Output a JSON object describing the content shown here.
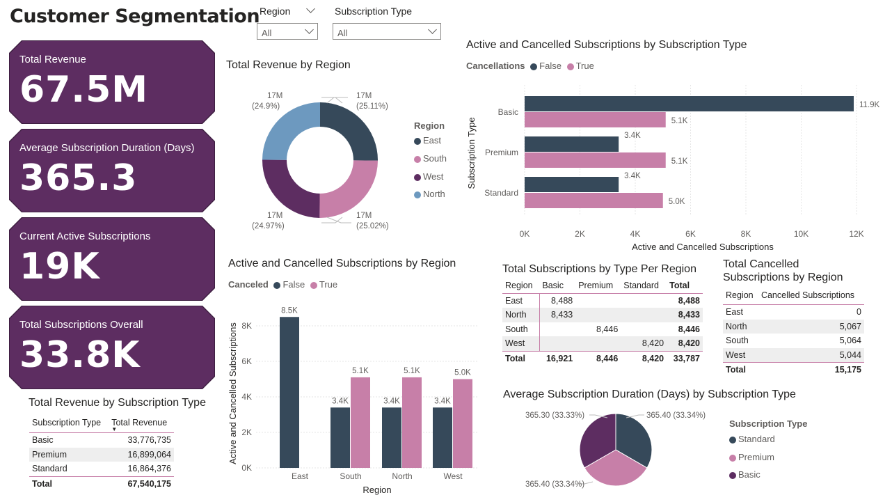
{
  "page_title": "Customer Segmentation",
  "slicers": [
    {
      "label": "Region",
      "value": "All"
    },
    {
      "label": "Subscription Type",
      "value": "All"
    }
  ],
  "kpis": [
    {
      "label": "Total Revenue",
      "value": "67.5M"
    },
    {
      "label": "Average Subscription Duration (Days)",
      "value": "365.3"
    },
    {
      "label": "Current Active Subscriptions",
      "value": "19K"
    },
    {
      "label": "Total Subscriptions Overall",
      "value": "33.8K"
    }
  ],
  "colors": {
    "dark": "#36495a",
    "pink": "#c77fa8",
    "purple": "#5d2d61",
    "blue": "#6d99bf"
  },
  "donut": {
    "title": "Total Revenue by Region",
    "legend_title": "Region",
    "slices": [
      {
        "name": "East",
        "pct": 25.11,
        "label": "17M",
        "pct_label": "(25.11%)",
        "color": "#36495a"
      },
      {
        "name": "South",
        "pct": 25.02,
        "label": "17M",
        "pct_label": "(25.02%)",
        "color": "#c77fa8"
      },
      {
        "name": "West",
        "pct": 24.97,
        "label": "17M",
        "pct_label": "(24.97%)",
        "color": "#5d2d61"
      },
      {
        "name": "North",
        "pct": 24.9,
        "label": "17M",
        "pct_label": "(24.9%)",
        "color": "#6d99bf"
      }
    ]
  },
  "hbar": {
    "title": "Active and Cancelled Subscriptions by Subscription Type",
    "legend_title": "Cancellations",
    "series_names": [
      "False",
      "True"
    ],
    "ylabel": "Subscription Type",
    "xlabel": "Active and Cancelled Subscriptions",
    "ticks": [
      "0K",
      "2K",
      "4K",
      "6K",
      "8K",
      "10K",
      "12K"
    ],
    "categories": [
      "Basic",
      "Premium",
      "Standard"
    ],
    "false_labels": [
      "11.9K",
      "3.4K",
      "3.4K"
    ],
    "true_labels": [
      "5.1K",
      "5.1K",
      "5.0K"
    ]
  },
  "vbar": {
    "title": "Active and Cancelled Subscriptions by Region",
    "legend_title": "Canceled",
    "series_names": [
      "False",
      "True"
    ],
    "ylabel": "Active and Cancelled Subscriptions",
    "xlabel": "Region",
    "ticks": [
      "0K",
      "2K",
      "4K",
      "6K",
      "8K"
    ],
    "categories": [
      "East",
      "South",
      "North",
      "West"
    ],
    "false_labels": [
      "8.5K",
      "3.4K",
      "3.4K",
      "3.4K"
    ],
    "true_labels": [
      "",
      "5.1K",
      "5.1K",
      "5.0K"
    ]
  },
  "chart_data": [
    {
      "type": "bar",
      "title": "Active and Cancelled Subscriptions by Subscription Type",
      "orientation": "horizontal",
      "categories": [
        "Basic",
        "Premium",
        "Standard"
      ],
      "series": [
        {
          "name": "False",
          "values": [
            11900,
            3400,
            3400
          ]
        },
        {
          "name": "True",
          "values": [
            5100,
            5100,
            5000
          ]
        }
      ],
      "xlabel": "Active and Cancelled Subscriptions",
      "ylabel": "Subscription Type",
      "xlim": [
        0,
        12000
      ],
      "legend": "top-left"
    },
    {
      "type": "bar",
      "title": "Active and Cancelled Subscriptions by Region",
      "categories": [
        "East",
        "South",
        "North",
        "West"
      ],
      "series": [
        {
          "name": "False",
          "values": [
            8500,
            3400,
            3400,
            3400
          ]
        },
        {
          "name": "True",
          "values": [
            0,
            5100,
            5100,
            5000
          ]
        }
      ],
      "xlabel": "Region",
      "ylabel": "Active and Cancelled Subscriptions",
      "ylim": [
        0,
        8500
      ],
      "legend": "top-left"
    },
    {
      "type": "pie",
      "title": "Total Revenue by Region",
      "categories": [
        "East",
        "South",
        "West",
        "North"
      ],
      "values": [
        25.11,
        25.02,
        24.97,
        24.9
      ]
    },
    {
      "type": "pie",
      "title": "Average Subscription Duration (Days) by Subscription Type",
      "categories": [
        "Standard",
        "Premium",
        "Basic"
      ],
      "values": [
        365.4,
        365.4,
        365.3
      ]
    }
  ],
  "table_type_region": {
    "title": "Total Subscriptions by Type Per Region",
    "headers": [
      "Region",
      "Basic",
      "Premium",
      "Standard",
      "Total"
    ],
    "rows": [
      [
        "East",
        "8,488",
        "",
        "",
        "8,488"
      ],
      [
        "North",
        "8,433",
        "",
        "",
        "8,433"
      ],
      [
        "South",
        "",
        "8,446",
        "",
        "8,446"
      ],
      [
        "West",
        "",
        "",
        "8,420",
        "8,420"
      ]
    ],
    "total": [
      "Total",
      "16,921",
      "8,446",
      "8,420",
      "33,787"
    ]
  },
  "table_cancelled": {
    "title_line1": "Total Cancelled",
    "title_line2": "Subscriptions by Region",
    "headers": [
      "Region",
      "Cancelled Subscriptions"
    ],
    "rows": [
      [
        "East",
        "0"
      ],
      [
        "North",
        "5,067"
      ],
      [
        "South",
        "5,064"
      ],
      [
        "West",
        "5,044"
      ]
    ],
    "total": [
      "Total",
      "15,175"
    ]
  },
  "table_revenue_type": {
    "title": "Total Revenue by Subscription Type",
    "headers": [
      "Subscription Type",
      "Total Revenue"
    ],
    "rows": [
      [
        "Basic",
        "33,776,735"
      ],
      [
        "Premium",
        "16,899,064"
      ],
      [
        "Standard",
        "16,864,376"
      ]
    ],
    "total": [
      "Total",
      "67,540,175"
    ]
  },
  "pie": {
    "title": "Average Subscription Duration (Days) by Subscription Type",
    "legend_title": "Subscription Type",
    "slices": [
      {
        "name": "Standard",
        "label": "365.40 (33.34%)",
        "color": "#36495a"
      },
      {
        "name": "Premium",
        "label": "365.40 (33.34%)",
        "color": "#c77fa8"
      },
      {
        "name": "Basic",
        "label": "365.30 (33.33%)",
        "color": "#5d2d61"
      }
    ]
  }
}
